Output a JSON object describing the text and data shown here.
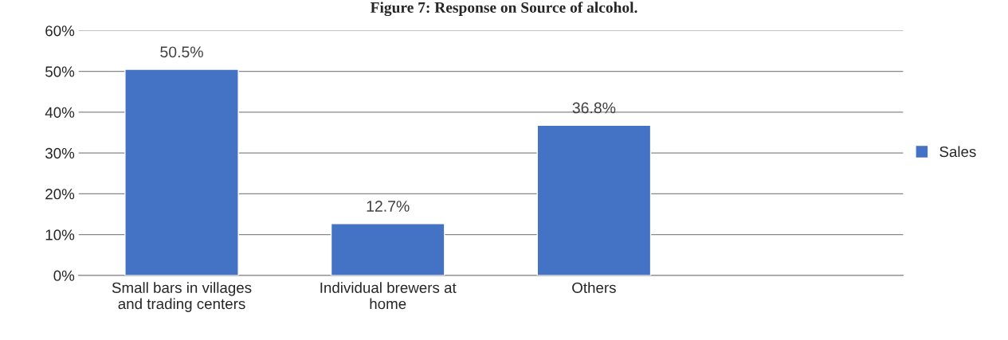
{
  "chart_data": {
    "type": "bar",
    "title": "Figure 7: Response on Source of alcohol.",
    "categories": [
      "Small bars in villages\nand trading centers",
      "Individual brewers at\nhome",
      "Others",
      null
    ],
    "series": [
      {
        "name": "Sales",
        "color": "#4472c4",
        "values": [
          50.5,
          12.7,
          36.8,
          null
        ]
      }
    ],
    "value_labels": [
      "50.5%",
      "12.7%",
      "36.8%",
      null
    ],
    "ylim": [
      0,
      60
    ],
    "yticks": [
      {
        "value": 0,
        "label": "0%"
      },
      {
        "value": 10,
        "label": "10%"
      },
      {
        "value": 20,
        "label": "20%"
      },
      {
        "value": 30,
        "label": "30%"
      },
      {
        "value": 40,
        "label": "40%"
      },
      {
        "value": 50,
        "label": "50%"
      },
      {
        "value": 60,
        "label": "60%"
      }
    ],
    "grid": "y",
    "legend": "right"
  }
}
